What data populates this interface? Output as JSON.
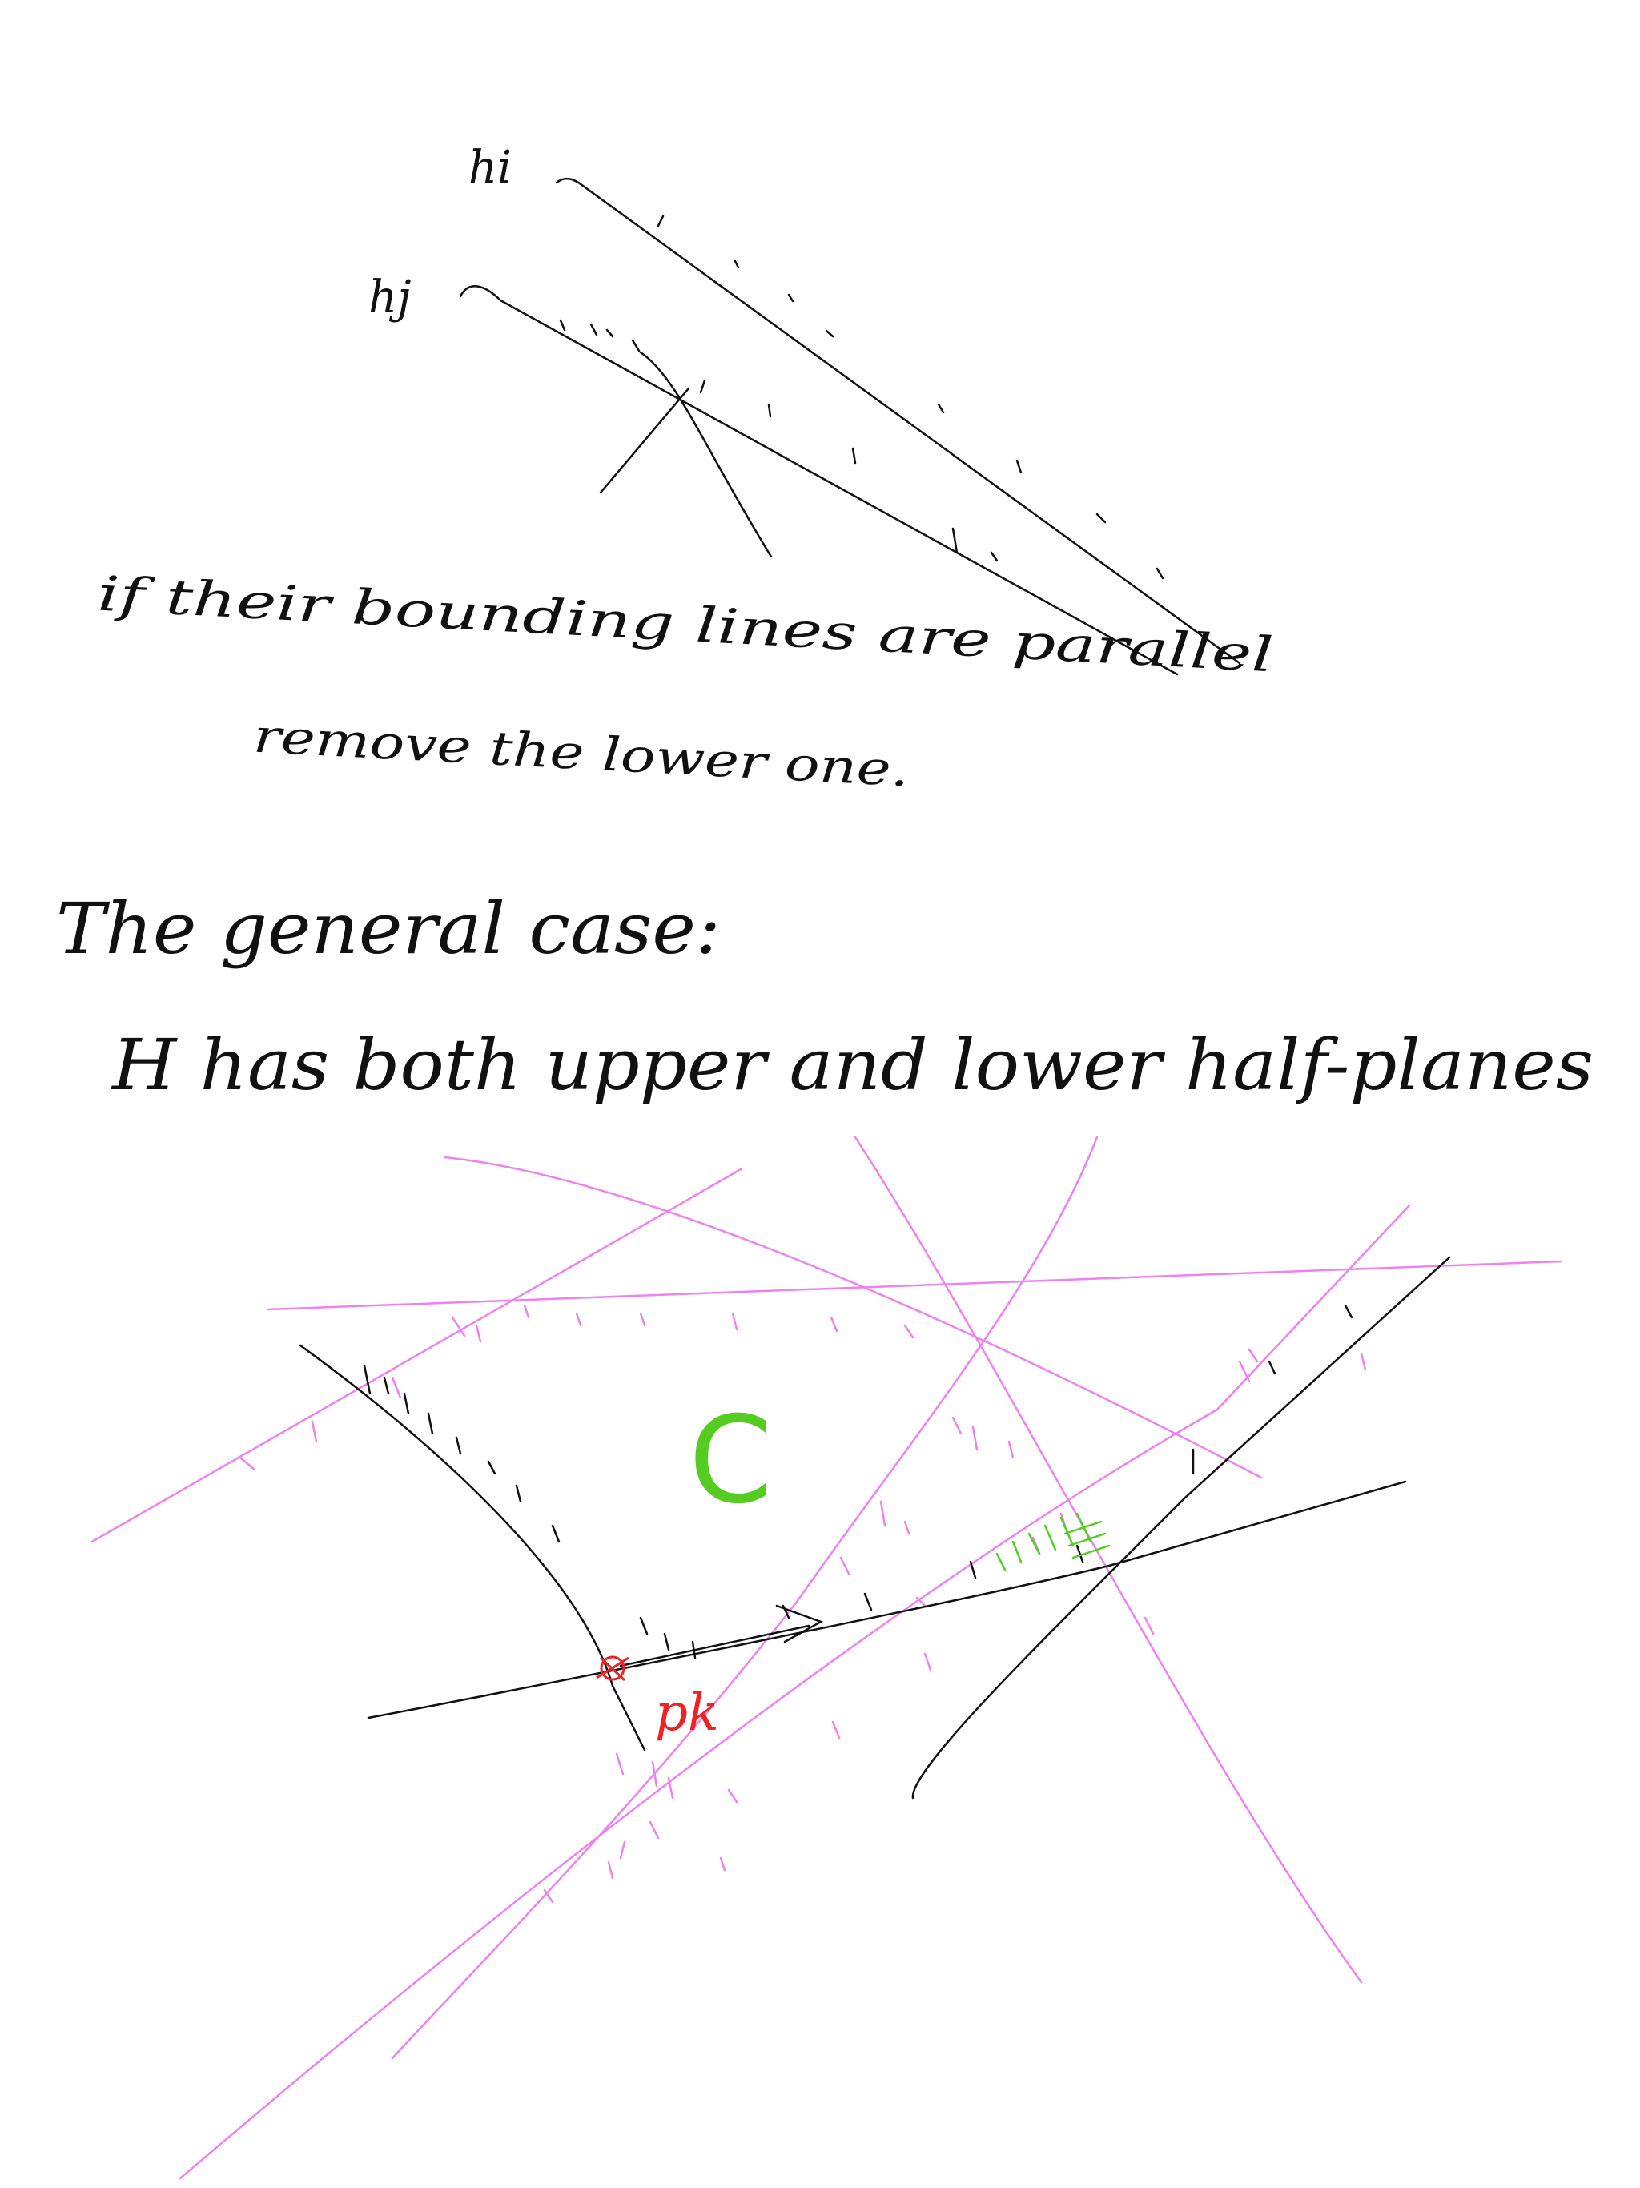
{
  "colors": {
    "ink": "#111111",
    "pink": "#ee82ee",
    "green": "#55cc22",
    "red": "#ee2222",
    "background": "#ffffff"
  },
  "top_sketch": {
    "label_hi": "hi",
    "label_hj": "hj"
  },
  "note": {
    "line1": "if their bounding lines are parallel",
    "line2": "remove the lower one."
  },
  "general": {
    "heading": "The general case:",
    "subheading": "H has both upper and lower half-planes"
  },
  "diagram": {
    "region_label": "C",
    "point_label": "pk"
  }
}
